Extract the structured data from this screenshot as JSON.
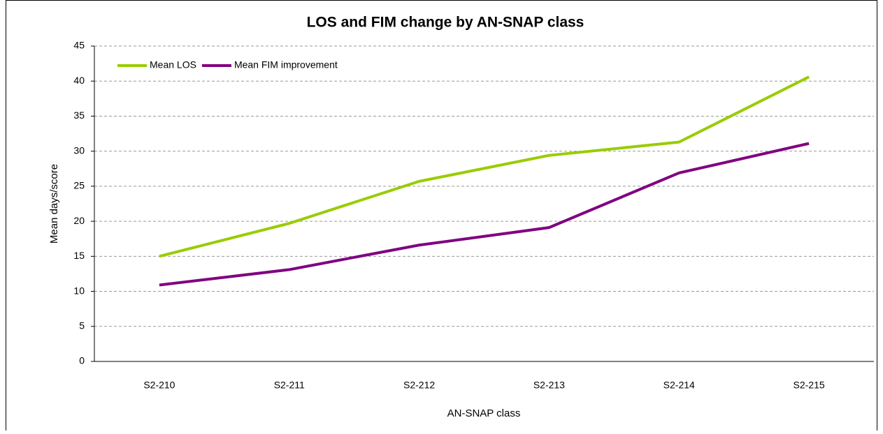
{
  "chart_data": {
    "type": "line",
    "title": "LOS and FIM change by AN-SNAP class",
    "x_label": "AN-SNAP class",
    "y_label": "Mean days/score",
    "categories": [
      "S2-210",
      "S2-211",
      "S2-212",
      "S2-213",
      "S2-214",
      "S2-215"
    ],
    "series": [
      {
        "name": "Mean LOS",
        "color": "#99cc00",
        "values": [
          15.0,
          19.7,
          25.7,
          29.4,
          31.3,
          40.6
        ]
      },
      {
        "name": "Mean FIM improvement",
        "color": "#800080",
        "values": [
          10.9,
          13.1,
          16.6,
          19.1,
          26.9,
          31.1
        ]
      }
    ],
    "ylim": [
      0,
      45
    ],
    "yticks": [
      0,
      5,
      10,
      15,
      20,
      25,
      30,
      35,
      40,
      45
    ],
    "grid": true,
    "legend": "top-left"
  }
}
